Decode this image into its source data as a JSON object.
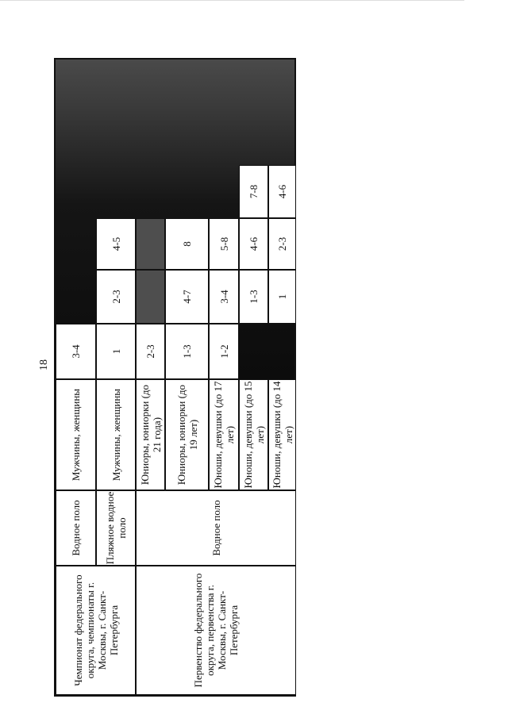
{
  "page_number": "18",
  "colors": {
    "dark_fill": "#111111",
    "gray_fill": "#4e4e4e"
  },
  "table": {
    "groups": [
      {
        "competition": "Чемпионат федерального округа, чемпионаты г. Москвы, г. Санкт-Петербурга",
        "rows": [
          0,
          1
        ]
      },
      {
        "competition": "Первенство федерального округа, первенства г. Москвы, г. Санкт-Петербурга",
        "rows": [
          2,
          3,
          4,
          5,
          6
        ]
      }
    ],
    "sports": [
      {
        "label": "Водное поло",
        "rows": [
          0
        ]
      },
      {
        "label": "Пляжное водное поло",
        "rows": [
          1
        ]
      },
      {
        "label": "Водное поло",
        "rows": [
          2,
          3,
          4,
          5,
          6
        ]
      }
    ],
    "rows": [
      {
        "age_group": "Мужчины, женщины",
        "values": [
          "3-4",
          "dark",
          "dark",
          "dark"
        ]
      },
      {
        "age_group": "Мужчины, женщины",
        "values": [
          "1",
          "2-3",
          "4-5",
          "dark"
        ]
      },
      {
        "age_group": "Юниоры, юниорки (до 21 года)",
        "values": [
          "2-3",
          "gray",
          "gray",
          "dark"
        ]
      },
      {
        "age_group": "Юниоры, юниорки (до 19 лет)",
        "values": [
          "1-3",
          "4-7",
          "8",
          "dark"
        ]
      },
      {
        "age_group": "Юноши, девушки (до 17 лет)",
        "values": [
          "1-2",
          "3-4",
          "5-8",
          "dark"
        ]
      },
      {
        "age_group": "Юноши, девушки (до 15 лет)",
        "values": [
          "dark",
          "1-3",
          "4-6",
          "7-8"
        ]
      },
      {
        "age_group": "Юноши, девушки (до 14 лет)",
        "values": [
          "dark",
          "1",
          "2-3",
          "4-6"
        ]
      }
    ]
  }
}
